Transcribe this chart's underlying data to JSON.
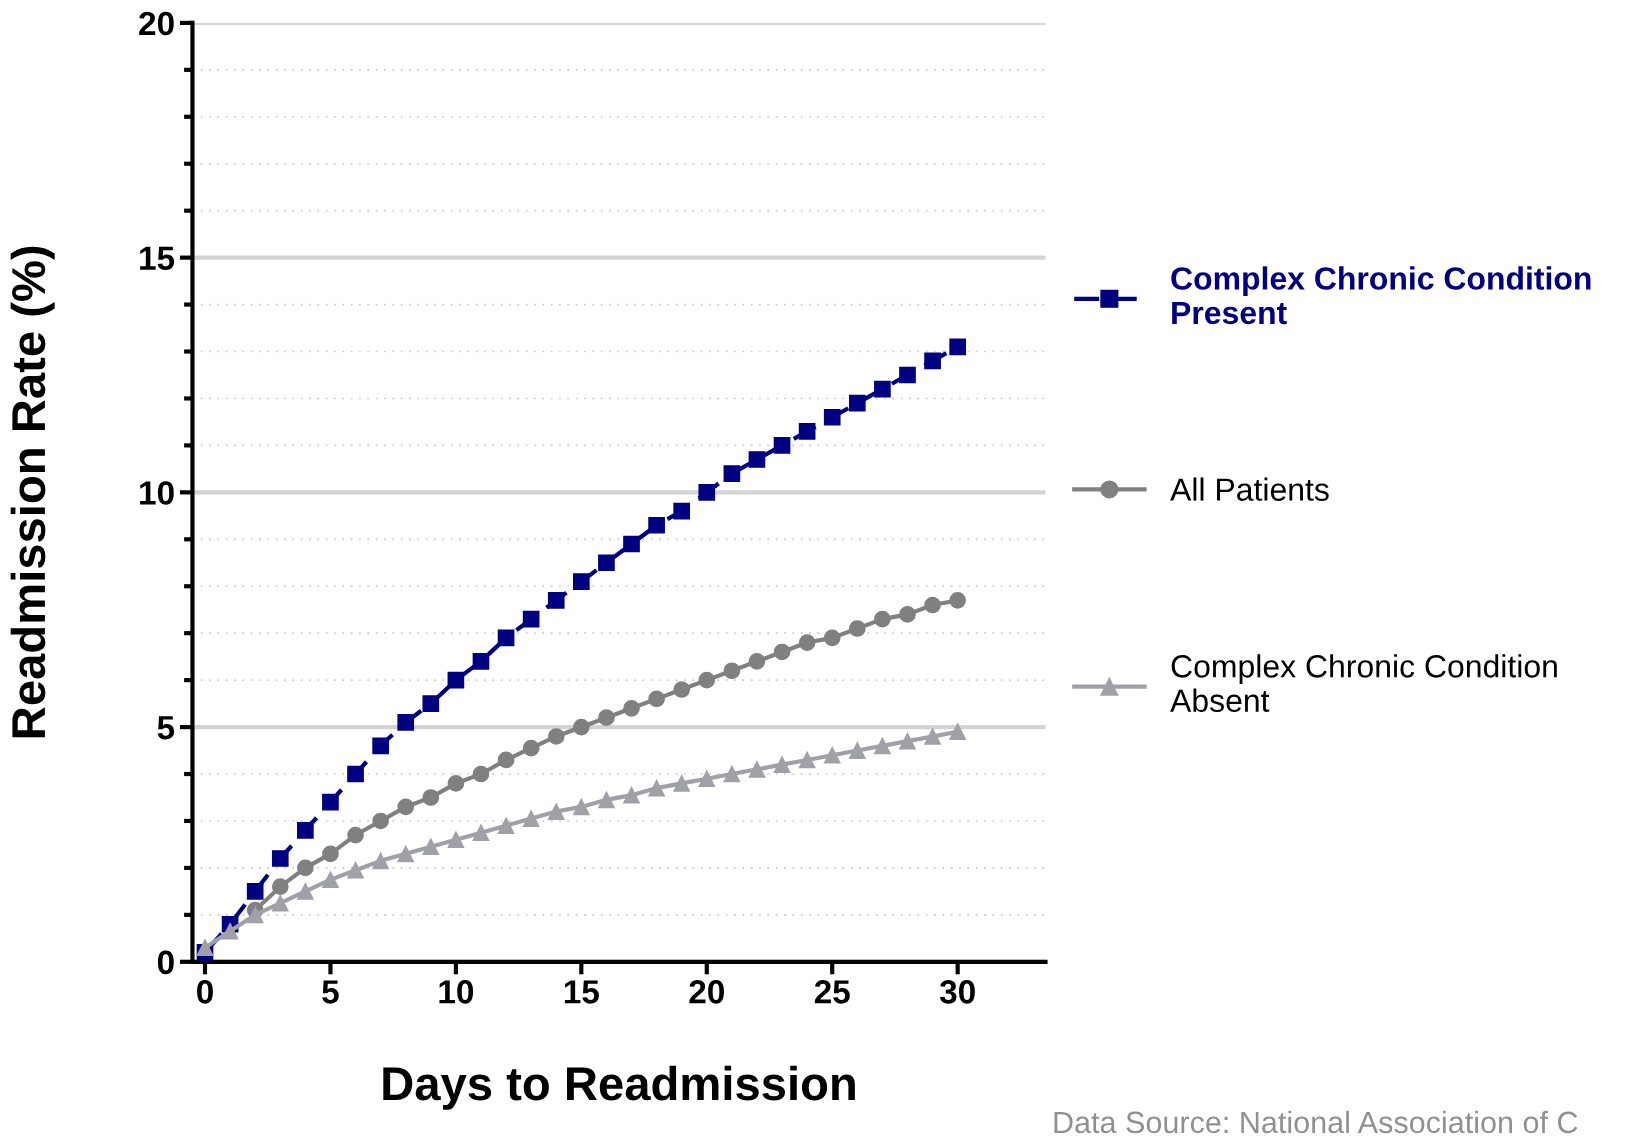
{
  "chart_data": {
    "type": "line",
    "xlabel": "Days to Readmission",
    "ylabel": "Readmission Rate (%)",
    "x": [
      0,
      1,
      2,
      3,
      4,
      5,
      6,
      7,
      8,
      9,
      10,
      11,
      12,
      13,
      14,
      15,
      16,
      17,
      18,
      19,
      20,
      21,
      22,
      23,
      24,
      25,
      26,
      27,
      28,
      29,
      30
    ],
    "series": [
      {
        "name": "Complex Chronic Condition\nPresent",
        "color": "#000080",
        "marker": "square",
        "line_style": "dashed",
        "values": [
          0.2,
          0.8,
          1.5,
          2.2,
          2.8,
          3.4,
          4.0,
          4.6,
          5.1,
          5.5,
          6.0,
          6.4,
          6.9,
          7.3,
          7.7,
          8.1,
          8.5,
          8.9,
          9.3,
          9.6,
          10.0,
          10.4,
          10.7,
          11.0,
          11.3,
          11.6,
          11.9,
          12.2,
          12.5,
          12.8,
          13.1
        ]
      },
      {
        "name": "All Patients",
        "color": "#808080",
        "marker": "circle",
        "line_style": "solid",
        "values": [
          null,
          null,
          1.1,
          1.6,
          2.0,
          2.3,
          2.7,
          3.0,
          3.3,
          3.5,
          3.8,
          4.0,
          4.3,
          4.55,
          4.8,
          5.0,
          5.2,
          5.4,
          5.6,
          5.8,
          6.0,
          6.2,
          6.4,
          6.6,
          6.8,
          6.9,
          7.1,
          7.3,
          7.4,
          7.6,
          7.7
        ]
      },
      {
        "name": "Complex Chronic Condition\nAbsent",
        "color": "#a0a0a8",
        "marker": "triangle",
        "line_style": "solid",
        "values": [
          0.3,
          0.65,
          1.0,
          1.25,
          1.5,
          1.75,
          1.95,
          2.15,
          2.3,
          2.45,
          2.6,
          2.75,
          2.9,
          3.05,
          3.2,
          3.3,
          3.45,
          3.55,
          3.7,
          3.8,
          3.9,
          4.0,
          4.1,
          4.2,
          4.3,
          4.4,
          4.5,
          4.6,
          4.7,
          4.8,
          4.9
        ]
      }
    ],
    "xlim": [
      -0.5,
      33.5
    ],
    "xticks": [
      0,
      5,
      10,
      15,
      20,
      25,
      30
    ],
    "ylim": [
      0,
      20
    ],
    "yticks": [
      0,
      5,
      10,
      15,
      20
    ],
    "grid": "y",
    "legend": "right",
    "annotations": [
      "Data Source: National Association of C"
    ]
  }
}
